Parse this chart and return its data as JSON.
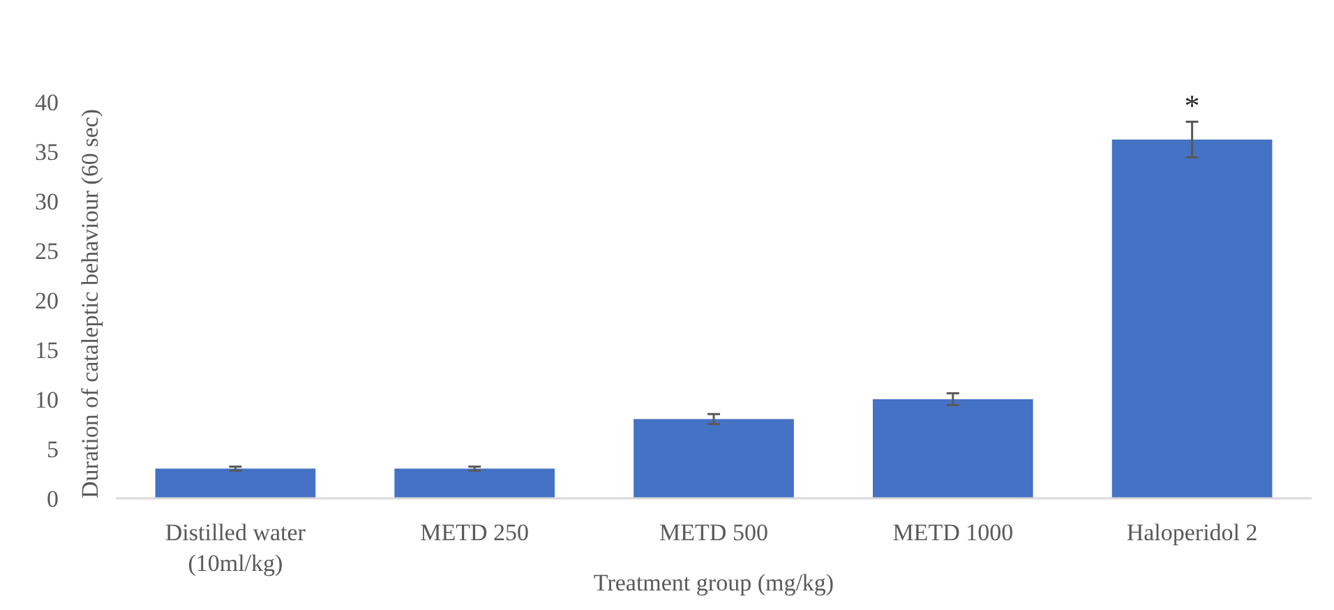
{
  "chart_data": {
    "type": "bar",
    "xlabel": "Treatment group (mg/kg)",
    "ylabel": "Duration of cataleptic behaviour (60 sec)",
    "categories": [
      "Distilled water\n(10ml/kg)",
      "METD 250",
      "METD 500",
      "METD 1000",
      "Haloperidol 2"
    ],
    "values": [
      3,
      3,
      8,
      10,
      36.2
    ],
    "errors": [
      0.2,
      0.2,
      0.5,
      0.6,
      1.8
    ],
    "color": "#4472c4",
    "ylim": [
      0,
      40
    ],
    "yticks": [
      0,
      5,
      10,
      15,
      20,
      25,
      30,
      35,
      40
    ],
    "grid": false,
    "annotations": [
      "*"
    ]
  }
}
